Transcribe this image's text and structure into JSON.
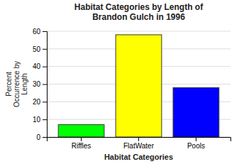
{
  "chart_data": {
    "type": "bar",
    "title": "Habitat Categories by Length of\nBrandon Gulch in 1996",
    "xlabel": "Habitat Categories",
    "ylabel": "Percent\nOccurrence by\nLength",
    "categories": [
      "Riffles",
      "FlatWater",
      "Pools"
    ],
    "values": [
      7,
      58,
      28
    ],
    "colors": [
      "#00ff00",
      "#ffff00",
      "#0000ff"
    ],
    "ylim": [
      0,
      60
    ],
    "yticks": [
      0,
      10,
      20,
      30,
      40,
      50,
      60
    ],
    "grid": true
  }
}
